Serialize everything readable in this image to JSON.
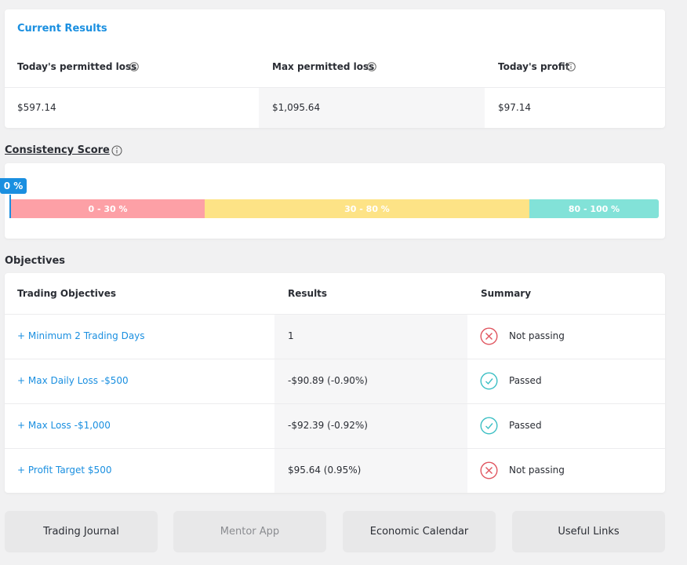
{
  "current_results": {
    "title": "Current Results",
    "columns": [
      {
        "label": "Today's permitted loss",
        "value": "$597.14"
      },
      {
        "label": "Max permitted loss",
        "value": "$1,095.64"
      },
      {
        "label": "Today's profit",
        "value": "$97.14"
      }
    ]
  },
  "consistency_score": {
    "label": "Consistency Score",
    "marker": "0 %",
    "ranges": [
      "0 - 30 %",
      "30 - 80 %",
      "80 - 100 %"
    ]
  },
  "objectives": {
    "title": "Objectives",
    "headers": [
      "Trading Objectives",
      "Results",
      "Summary"
    ],
    "rows": [
      [
        "+ Minimum 2 Trading Days",
        "1",
        "Not passing"
      ],
      [
        "+ Max Daily Loss -$500",
        "-$90.89 (-0.90%)",
        "Passed"
      ],
      [
        "+ Max Loss -$1,000",
        "-$92.39 (-0.92%)",
        "Passed"
      ],
      [
        "+ Profit Target $500",
        "$95.64 (0.95%)",
        "Not passing"
      ]
    ]
  },
  "buttons": [
    "Trading Journal",
    "Mentor App",
    "Economic Calendar",
    "Useful Links"
  ]
}
